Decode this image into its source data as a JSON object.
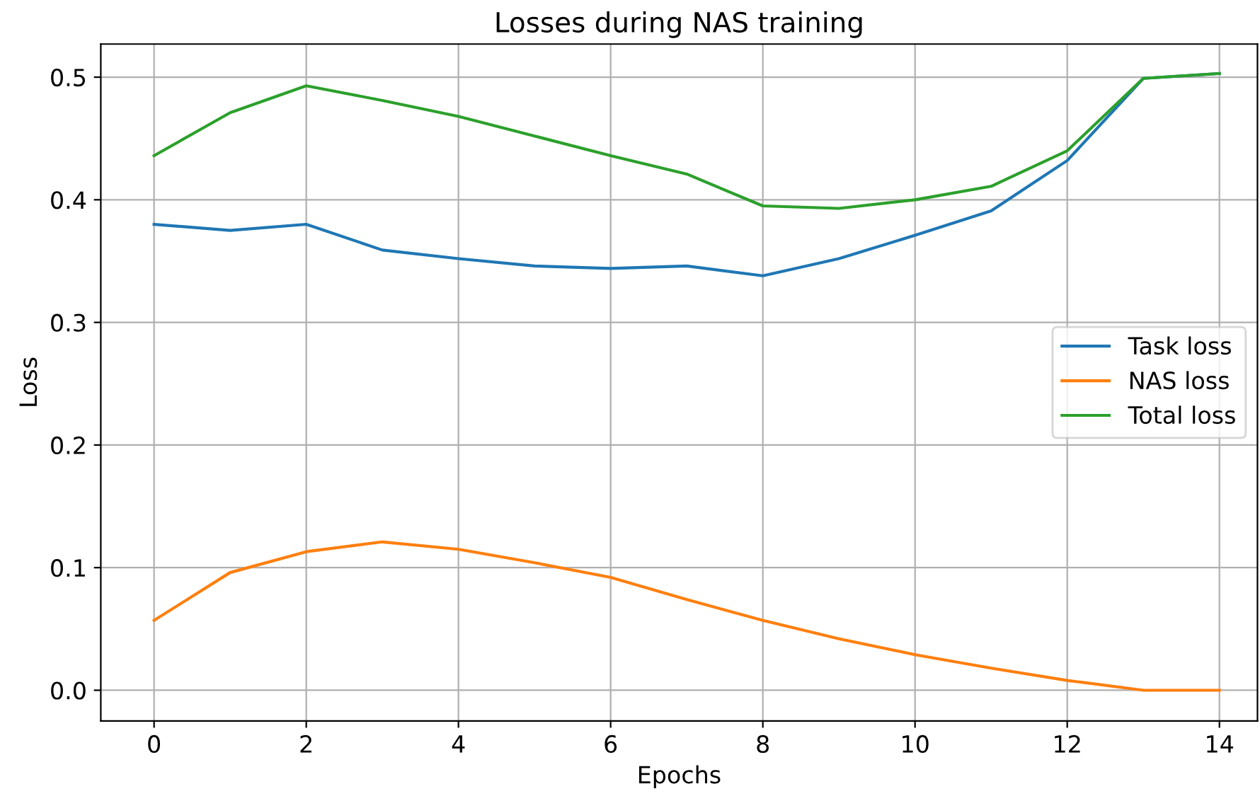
{
  "chart_data": {
    "type": "line",
    "title": "Losses during NAS training",
    "xlabel": "Epochs",
    "ylabel": "Loss",
    "x": [
      0,
      1,
      2,
      3,
      4,
      5,
      6,
      7,
      8,
      9,
      10,
      11,
      12,
      13,
      14
    ],
    "series": [
      {
        "name": "Task loss",
        "color": "#1f77b4",
        "values": [
          0.38,
          0.375,
          0.38,
          0.359,
          0.352,
          0.346,
          0.344,
          0.346,
          0.338,
          0.352,
          0.371,
          0.391,
          0.432,
          0.499,
          0.503
        ]
      },
      {
        "name": "NAS loss",
        "color": "#ff7f0e",
        "values": [
          0.057,
          0.096,
          0.113,
          0.121,
          0.115,
          0.104,
          0.092,
          0.074,
          0.057,
          0.042,
          0.029,
          0.018,
          0.008,
          0.0,
          0.0
        ]
      },
      {
        "name": "Total loss",
        "color": "#2ca02c",
        "values": [
          0.436,
          0.471,
          0.493,
          0.481,
          0.468,
          0.452,
          0.436,
          0.421,
          0.395,
          0.393,
          0.4,
          0.411,
          0.44,
          0.499,
          0.503
        ]
      }
    ],
    "xlim": [
      -0.7,
      14.5
    ],
    "ylim": [
      -0.025,
      0.527
    ],
    "xticks": [
      0,
      2,
      4,
      6,
      8,
      10,
      12,
      14
    ],
    "yticks": [
      {
        "value": 0,
        "label": "0.0"
      },
      0.1,
      0.2,
      0.3,
      0.4,
      0.5
    ],
    "grid": true,
    "legend": "center right"
  }
}
